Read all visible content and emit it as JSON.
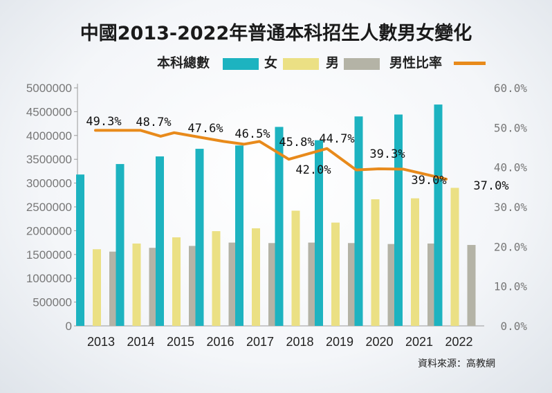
{
  "chart_data": {
    "type": "bar",
    "title": "中國2013-2022年普通本科招生人數男女變化",
    "categories": [
      "2013",
      "2014",
      "2015",
      "2016",
      "2017",
      "2018",
      "2019",
      "2020",
      "2021",
      "2022"
    ],
    "series": [
      {
        "name": "本科總數",
        "axis": "left",
        "color": "#1db3c0",
        "values": [
          3180000,
          3400000,
          3560000,
          3720000,
          3790000,
          4180000,
          3900000,
          4400000,
          4440000,
          4650000
        ]
      },
      {
        "name": "女",
        "axis": "left",
        "color": "#ebe084",
        "values": [
          1610000,
          1730000,
          1860000,
          1990000,
          2050000,
          2420000,
          2170000,
          2660000,
          2680000,
          2900000
        ]
      },
      {
        "name": "男",
        "axis": "left",
        "color": "#b4b3a6",
        "values": [
          1560000,
          1640000,
          1680000,
          1750000,
          1740000,
          1750000,
          1740000,
          1720000,
          1730000,
          1700000
        ]
      },
      {
        "name": "男性比率",
        "axis": "right",
        "type": "line",
        "color": "#e88a1b",
        "values": [
          49.3,
          48.7,
          47.6,
          46.5,
          45.8,
          42.0,
          44.7,
          39.3,
          39.0,
          37.0
        ],
        "labels": [
          "49.3%",
          "48.7%",
          "47.6%",
          "46.5%",
          "45.8%",
          "42.0%",
          "44.7%",
          "39.3%",
          "39.0%",
          "37.0%"
        ]
      }
    ],
    "line_path_values": [
      49.3,
      49.3,
      49.3,
      47.8,
      48.7,
      47.6,
      46.5,
      45.8,
      46.5,
      42.0,
      44.7,
      39.3,
      39.6,
      39.5,
      37.0
    ],
    "line_path_x": [
      0,
      0.55,
      1,
      1.45,
      1.75,
      2.3,
      2.85,
      3.3,
      3.65,
      4.3,
      5.15,
      5.8,
      6.3,
      6.85,
      7.8
    ],
    "yLeft": {
      "min": 0,
      "max": 5000000,
      "ticks": [
        "0",
        "500000",
        "1000000",
        "1500000",
        "2000000",
        "2500000",
        "3000000",
        "3500000",
        "4000000",
        "4500000",
        "5000000"
      ]
    },
    "yRight": {
      "min": 0,
      "max": 60,
      "ticks": [
        "0.0%",
        "10.0%",
        "20.0%",
        "30.0%",
        "40.0%",
        "50.0%",
        "60.0%"
      ]
    },
    "legend": [
      {
        "label": "本科總數",
        "color": "#1db3c0"
      },
      {
        "label": "女",
        "color": "#ebe084"
      },
      {
        "label": "男",
        "color": "#b4b3a6"
      },
      {
        "label": "男性比率",
        "color": "#e88a1b",
        "type": "line"
      }
    ],
    "grid": false
  },
  "source": "資料來源：高教網"
}
